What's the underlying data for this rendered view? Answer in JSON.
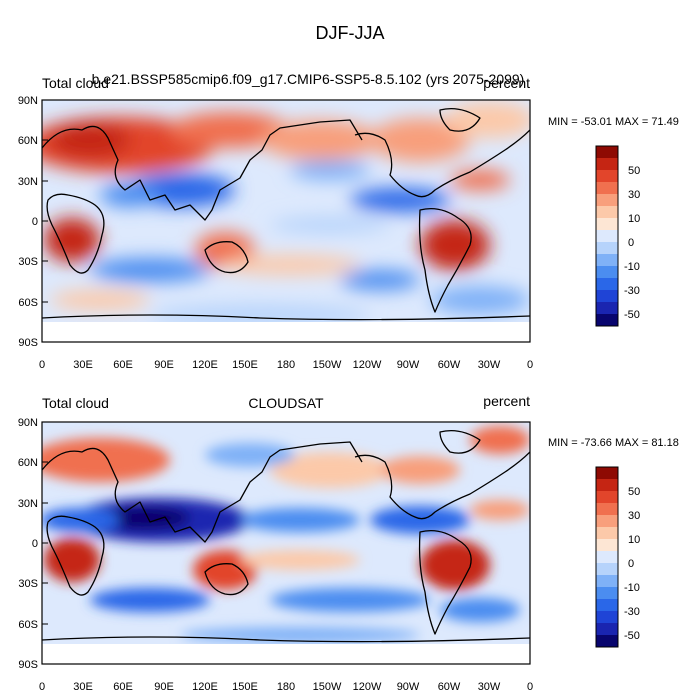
{
  "figure": {
    "title": "DJF-JJA"
  },
  "colors": {
    "levels": [
      "-60",
      "-50",
      "-40",
      "-30",
      "-20",
      "-10",
      "-5",
      "0",
      "5",
      "10",
      "20",
      "30",
      "40",
      "50",
      "60"
    ],
    "palette": [
      "#08056e",
      "#1a25b0",
      "#1f44d6",
      "#2a67e8",
      "#4b8df0",
      "#7fb1f7",
      "#b6d3fb",
      "#dde9fd",
      "#fde6d4",
      "#fcc9a9",
      "#f89f7c",
      "#f0704f",
      "#e2452b",
      "#c52513",
      "#8e0a03"
    ]
  },
  "map": {
    "y_ticks": [
      "90N",
      "60N",
      "30N",
      "0",
      "30S",
      "60S",
      "90S"
    ],
    "x_ticks": [
      "0",
      "30E",
      "60E",
      "90E",
      "120E",
      "150E",
      "180",
      "150W",
      "120W",
      "90W",
      "60W",
      "30W",
      "0"
    ]
  },
  "panels": [
    {
      "left_label": "Total cloud",
      "center_label": "b.e21.BSSP585cmip6.f09_g17.CMIP6-SSP5-8.5.102 (yrs 2075-2099)",
      "right_label": "percent",
      "stats": "MIN = -53.01 MAX =  71.49",
      "colorbar_labels": [
        "50",
        "30",
        "10",
        "0",
        "-10",
        "-30",
        "-50"
      ]
    },
    {
      "left_label": "Total cloud",
      "center_label": "CLOUDSAT",
      "right_label": "percent",
      "stats": "MIN = -73.66 MAX =  81.18",
      "colorbar_labels": [
        "50",
        "30",
        "10",
        "0",
        "-10",
        "-30",
        "-50"
      ]
    }
  ]
}
